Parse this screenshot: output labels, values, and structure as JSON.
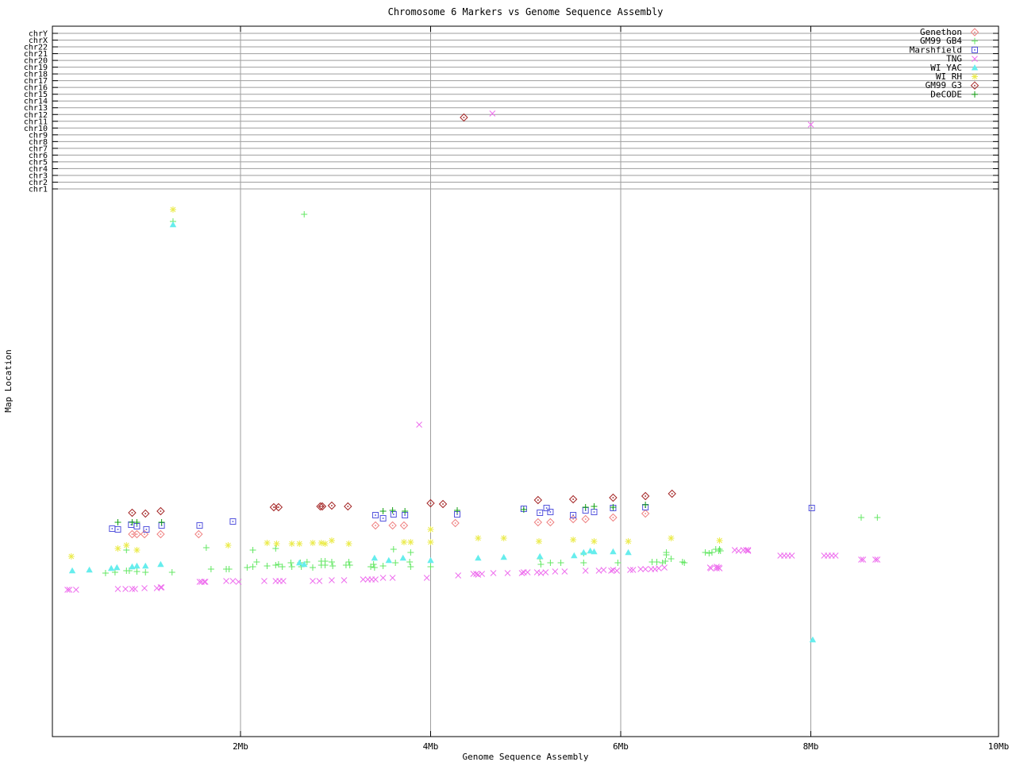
{
  "title": "Chromosome 6 Markers vs Genome Sequence Assembly",
  "xlabel": "Genome Sequence Assembly",
  "ylabel": "Map Location",
  "chart_data": {
    "type": "scatter",
    "title": "Chromosome 6 Markers vs Genome Sequence Assembly",
    "xlabel": "Genome Sequence Assembly",
    "ylabel": "Map Location",
    "grid": true,
    "legend_position": "top-right",
    "point_format": "[x_in_Mb, y_screen_px] (y axis has no numeric scale; only chromosome bands are labeled)",
    "x_axis": {
      "unit": "Mb",
      "min": 0,
      "max": 10,
      "ticks": [
        {
          "value": 2,
          "label": "2Mb"
        },
        {
          "value": 4,
          "label": "4Mb"
        },
        {
          "value": 6,
          "label": "6Mb"
        },
        {
          "value": 8,
          "label": "8Mb"
        },
        {
          "value": 10,
          "label": "10Mb"
        }
      ]
    },
    "y_axis": {
      "chromosomes": [
        "chrY",
        "chrX",
        "chr22",
        "chr21",
        "chr20",
        "chr19",
        "chr18",
        "chr17",
        "chr16",
        "chr15",
        "chr14",
        "chr13",
        "chr12",
        "chr11",
        "chr10",
        "chr9",
        "chr8",
        "chr7",
        "chr6",
        "chr5",
        "chr4",
        "chr3",
        "chr2",
        "chr1"
      ]
    },
    "colors": {
      "grid": "#9e9e9e",
      "border": "#000000"
    },
    "series": [
      {
        "name": "Genethon",
        "color": "#ef8080",
        "marker": "open-diamond",
        "points": [
          [
            0.86,
            673
          ],
          [
            0.91,
            673
          ],
          [
            0.99,
            673
          ],
          [
            1.16,
            673
          ],
          [
            1.56,
            673
          ],
          [
            3.42,
            662
          ],
          [
            3.6,
            662
          ],
          [
            3.72,
            662
          ],
          [
            4.26,
            659
          ],
          [
            5.13,
            658
          ],
          [
            5.26,
            658
          ],
          [
            5.5,
            654
          ],
          [
            5.63,
            654
          ],
          [
            5.92,
            652
          ],
          [
            6.26,
            647
          ]
        ]
      },
      {
        "name": "GM99 GB4",
        "color": "#63e763",
        "marker": "plus",
        "points": [
          [
            1.29,
            279
          ],
          [
            2.67,
            270
          ],
          [
            0.58,
            722
          ],
          [
            0.68,
            721
          ],
          [
            0.8,
            719
          ],
          [
            0.8,
            693
          ],
          [
            0.83,
            719
          ],
          [
            0.91,
            720
          ],
          [
            1.0,
            721
          ],
          [
            1.28,
            721
          ],
          [
            1.64,
            690
          ],
          [
            1.69,
            717
          ],
          [
            1.85,
            717
          ],
          [
            1.88,
            717
          ],
          [
            2.07,
            715
          ],
          [
            2.13,
            714
          ],
          [
            2.13,
            693
          ],
          [
            2.17,
            708
          ],
          [
            2.28,
            713
          ],
          [
            2.37,
            712
          ],
          [
            2.37,
            691
          ],
          [
            2.4,
            711
          ],
          [
            2.44,
            714
          ],
          [
            2.53,
            709
          ],
          [
            2.54,
            714
          ],
          [
            2.63,
            709
          ],
          [
            2.64,
            714
          ],
          [
            2.7,
            708
          ],
          [
            2.76,
            715
          ],
          [
            2.85,
            707
          ],
          [
            2.85,
            712
          ],
          [
            2.89,
            707
          ],
          [
            2.89,
            712
          ],
          [
            2.96,
            708
          ],
          [
            2.97,
            713
          ],
          [
            3.11,
            712
          ],
          [
            3.14,
            708
          ],
          [
            3.15,
            712
          ],
          [
            3.37,
            714
          ],
          [
            3.4,
            711
          ],
          [
            3.41,
            715
          ],
          [
            3.5,
            713
          ],
          [
            3.61,
            692
          ],
          [
            3.63,
            709
          ],
          [
            3.78,
            708
          ],
          [
            3.79,
            696
          ],
          [
            3.79,
            714
          ],
          [
            4.0,
            714
          ],
          [
            5.15,
            704
          ],
          [
            5.16,
            711
          ],
          [
            5.26,
            709
          ],
          [
            5.37,
            709
          ],
          [
            5.61,
            697
          ],
          [
            5.61,
            709
          ],
          [
            5.97,
            709
          ],
          [
            6.33,
            708
          ],
          [
            6.38,
            708
          ],
          [
            6.44,
            709
          ],
          [
            6.47,
            707
          ],
          [
            6.48,
            699
          ],
          [
            6.48,
            696
          ],
          [
            6.53,
            704
          ],
          [
            6.65,
            708
          ],
          [
            6.67,
            709
          ],
          [
            6.89,
            696
          ],
          [
            6.93,
            697
          ],
          [
            6.96,
            696
          ],
          [
            7.0,
            692
          ],
          [
            7.03,
            694
          ],
          [
            7.04,
            692
          ],
          [
            7.05,
            694
          ],
          [
            8.53,
            652
          ],
          [
            8.7,
            652
          ]
        ]
      },
      {
        "name": "Marshfield",
        "color": "#5353dd",
        "marker": "square-dot",
        "points": [
          [
            0.65,
            666
          ],
          [
            0.71,
            667
          ],
          [
            0.85,
            661
          ],
          [
            0.91,
            663
          ],
          [
            1.01,
            667
          ],
          [
            1.17,
            662
          ],
          [
            1.57,
            662
          ],
          [
            1.92,
            657
          ],
          [
            3.42,
            649
          ],
          [
            3.5,
            653
          ],
          [
            3.61,
            648
          ],
          [
            3.73,
            649
          ],
          [
            4.28,
            648
          ],
          [
            4.98,
            641
          ],
          [
            5.15,
            646
          ],
          [
            5.22,
            640
          ],
          [
            5.26,
            645
          ],
          [
            5.5,
            649
          ],
          [
            5.63,
            643
          ],
          [
            5.72,
            645
          ],
          [
            5.92,
            640
          ],
          [
            6.26,
            639
          ],
          [
            8.01,
            640
          ]
        ]
      },
      {
        "name": "TNG",
        "color": "#ee6fee",
        "marker": "cross",
        "points": [
          [
            0.18,
            743
          ],
          [
            0.2,
            743
          ],
          [
            0.27,
            743
          ],
          [
            0.71,
            742
          ],
          [
            0.79,
            742
          ],
          [
            0.86,
            742
          ],
          [
            0.89,
            742
          ],
          [
            0.99,
            741
          ],
          [
            1.12,
            741
          ],
          [
            1.16,
            740
          ],
          [
            1.17,
            740
          ],
          [
            1.57,
            733
          ],
          [
            1.59,
            733
          ],
          [
            1.62,
            733
          ],
          [
            1.63,
            733
          ],
          [
            1.85,
            732
          ],
          [
            1.92,
            732
          ],
          [
            1.98,
            733
          ],
          [
            2.25,
            732
          ],
          [
            2.37,
            732
          ],
          [
            2.41,
            732
          ],
          [
            2.45,
            732
          ],
          [
            2.76,
            732
          ],
          [
            2.83,
            732
          ],
          [
            2.96,
            731
          ],
          [
            3.09,
            731
          ],
          [
            3.29,
            730
          ],
          [
            3.34,
            730
          ],
          [
            3.38,
            730
          ],
          [
            3.42,
            730
          ],
          [
            3.5,
            728
          ],
          [
            3.6,
            728
          ],
          [
            3.88,
            535
          ],
          [
            3.96,
            728
          ],
          [
            4.29,
            725
          ],
          [
            4.45,
            723
          ],
          [
            4.48,
            723
          ],
          [
            4.5,
            724
          ],
          [
            4.54,
            723
          ],
          [
            4.65,
            143
          ],
          [
            4.66,
            722
          ],
          [
            4.81,
            722
          ],
          [
            4.96,
            722
          ],
          [
            4.98,
            721
          ],
          [
            5.02,
            721
          ],
          [
            5.12,
            721
          ],
          [
            5.16,
            722
          ],
          [
            5.21,
            721
          ],
          [
            5.31,
            720
          ],
          [
            5.41,
            720
          ],
          [
            5.63,
            719
          ],
          [
            5.77,
            719
          ],
          [
            5.82,
            718
          ],
          [
            5.9,
            719
          ],
          [
            5.92,
            718
          ],
          [
            5.96,
            719
          ],
          [
            6.1,
            718
          ],
          [
            6.13,
            718
          ],
          [
            6.21,
            717
          ],
          [
            6.26,
            717
          ],
          [
            6.32,
            717
          ],
          [
            6.36,
            717
          ],
          [
            6.4,
            716
          ],
          [
            6.46,
            715
          ],
          [
            6.94,
            715
          ],
          [
            6.95,
            716
          ],
          [
            7.01,
            714
          ],
          [
            7.01,
            716
          ],
          [
            7.03,
            715
          ],
          [
            7.04,
            716
          ],
          [
            7.2,
            693
          ],
          [
            7.24,
            694
          ],
          [
            7.29,
            693
          ],
          [
            7.32,
            693
          ],
          [
            7.34,
            694
          ],
          [
            7.34,
            693
          ],
          [
            7.68,
            700
          ],
          [
            7.72,
            700
          ],
          [
            7.76,
            700
          ],
          [
            7.8,
            700
          ],
          [
            8.0,
            157
          ],
          [
            8.14,
            700
          ],
          [
            8.18,
            700
          ],
          [
            8.22,
            700
          ],
          [
            8.26,
            700
          ],
          [
            8.53,
            705
          ],
          [
            8.55,
            705
          ],
          [
            8.68,
            705
          ],
          [
            8.7,
            705
          ]
        ]
      },
      {
        "name": "WI YAC",
        "color": "#66eded",
        "marker": "triangle",
        "points": [
          [
            1.29,
            283
          ],
          [
            8.02,
            806
          ],
          [
            0.23,
            719
          ],
          [
            0.41,
            718
          ],
          [
            0.64,
            716
          ],
          [
            0.7,
            715
          ],
          [
            0.86,
            714
          ],
          [
            0.91,
            713
          ],
          [
            1.0,
            713
          ],
          [
            1.16,
            711
          ],
          [
            2.62,
            709
          ],
          [
            2.67,
            711
          ],
          [
            3.41,
            703
          ],
          [
            3.56,
            706
          ],
          [
            3.71,
            703
          ],
          [
            4.0,
            706
          ],
          [
            4.5,
            703
          ],
          [
            4.77,
            702
          ],
          [
            5.15,
            701
          ],
          [
            5.51,
            700
          ],
          [
            5.61,
            696
          ],
          [
            5.68,
            694
          ],
          [
            5.72,
            695
          ],
          [
            5.92,
            695
          ],
          [
            6.08,
            696
          ]
        ]
      },
      {
        "name": "WI RH",
        "color": "#ebeb4d",
        "marker": "star",
        "points": [
          [
            1.29,
            264
          ],
          [
            0.22,
            701
          ],
          [
            0.71,
            691
          ],
          [
            0.8,
            687
          ],
          [
            0.91,
            693
          ],
          [
            1.87,
            687
          ],
          [
            2.28,
            684
          ],
          [
            2.38,
            685
          ],
          [
            2.54,
            685
          ],
          [
            2.62,
            685
          ],
          [
            2.76,
            684
          ],
          [
            2.85,
            684
          ],
          [
            2.89,
            685
          ],
          [
            2.96,
            681
          ],
          [
            3.14,
            685
          ],
          [
            3.72,
            683
          ],
          [
            3.79,
            683
          ],
          [
            4.0,
            683
          ],
          [
            4.0,
            667
          ],
          [
            4.5,
            678
          ],
          [
            4.77,
            678
          ],
          [
            5.14,
            682
          ],
          [
            5.5,
            680
          ],
          [
            5.72,
            682
          ],
          [
            6.08,
            682
          ],
          [
            6.53,
            678
          ],
          [
            7.04,
            681
          ]
        ]
      },
      {
        "name": "GM99 G3",
        "color": "#a32424",
        "marker": "open-diamond",
        "points": [
          [
            4.35,
            148
          ],
          [
            0.86,
            646
          ],
          [
            1.0,
            647
          ],
          [
            1.16,
            644
          ],
          [
            2.35,
            639
          ],
          [
            2.4,
            639
          ],
          [
            2.84,
            638
          ],
          [
            2.86,
            638
          ],
          [
            2.96,
            637
          ],
          [
            3.13,
            638
          ],
          [
            4.0,
            634
          ],
          [
            4.13,
            635
          ],
          [
            5.13,
            630
          ],
          [
            5.5,
            629
          ],
          [
            5.92,
            627
          ],
          [
            6.26,
            625
          ],
          [
            6.54,
            622
          ]
        ]
      },
      {
        "name": "DeCODE",
        "color": "#12a012",
        "marker": "plus",
        "points": [
          [
            0.71,
            658
          ],
          [
            0.86,
            658
          ],
          [
            0.91,
            658
          ],
          [
            1.17,
            658
          ],
          [
            3.5,
            644
          ],
          [
            3.6,
            643
          ],
          [
            3.73,
            644
          ],
          [
            4.28,
            643
          ],
          [
            4.98,
            642
          ],
          [
            5.63,
            639
          ],
          [
            5.72,
            638
          ],
          [
            5.92,
            639
          ],
          [
            6.26,
            636
          ]
        ]
      }
    ]
  }
}
